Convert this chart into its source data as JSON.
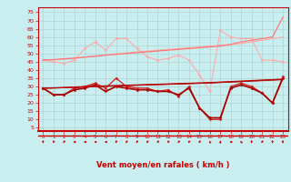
{
  "title": "",
  "xlabel": "Vent moyen/en rafales ( km/h )",
  "background_color": "#c8eef0",
  "grid_color": "#aacccc",
  "x_ticks": [
    0,
    1,
    2,
    3,
    4,
    5,
    6,
    7,
    8,
    9,
    10,
    11,
    12,
    13,
    14,
    15,
    16,
    17,
    18,
    19,
    20,
    21,
    22,
    23
  ],
  "y_ticks": [
    5,
    10,
    15,
    20,
    25,
    30,
    35,
    40,
    45,
    50,
    55,
    60,
    65,
    70,
    75
  ],
  "ylim": [
    3,
    78
  ],
  "xlim": [
    -0.5,
    23.5
  ],
  "lines": [
    {
      "color": "#ffaaaa",
      "lw": 0.8,
      "marker": "D",
      "ms": 1.5,
      "data": [
        46,
        45,
        44,
        46,
        53,
        57,
        52,
        59,
        59,
        53,
        48,
        46,
        47,
        49,
        46,
        37,
        27,
        64,
        60,
        59,
        59,
        46,
        46,
        45
      ]
    },
    {
      "color": "#ffaaaa",
      "lw": 0.8,
      "marker": null,
      "ms": 0,
      "data": [
        46,
        46.2,
        46.5,
        47,
        47.8,
        48.5,
        49,
        49.8,
        50.3,
        51,
        51.5,
        52,
        52.5,
        53,
        53.5,
        54,
        54.5,
        55,
        55.5,
        56,
        57,
        58,
        59,
        60
      ]
    },
    {
      "color": "#ff7777",
      "lw": 0.9,
      "marker": null,
      "ms": 0,
      "data": [
        46,
        46.3,
        46.8,
        47.2,
        47.8,
        48.3,
        49,
        49.5,
        50,
        50.5,
        51,
        51.5,
        52,
        52.5,
        53,
        53.5,
        54,
        54.5,
        55.5,
        57,
        58,
        59,
        60,
        72
      ]
    },
    {
      "color": "#cc2222",
      "lw": 0.9,
      "marker": "D",
      "ms": 1.5,
      "data": [
        29,
        25,
        25,
        29,
        30,
        32,
        29,
        35,
        30,
        29,
        29,
        27,
        28,
        24,
        30,
        17,
        10,
        10,
        30,
        32,
        30,
        26,
        20,
        36
      ]
    },
    {
      "color": "#aa0000",
      "lw": 1.2,
      "marker": "D",
      "ms": 1.5,
      "data": [
        29,
        25,
        25,
        28,
        29,
        31,
        27,
        30,
        29,
        28,
        28,
        27,
        27,
        25,
        29,
        17,
        11,
        11,
        29,
        31,
        29,
        26,
        20,
        35
      ]
    },
    {
      "color": "#cc1111",
      "lw": 0.8,
      "marker": null,
      "ms": 0,
      "data": [
        29,
        29.2,
        29.4,
        29.7,
        30,
        30.2,
        30.4,
        30.6,
        30.8,
        31,
        31.2,
        31.4,
        31.6,
        31.8,
        32,
        32.2,
        32.4,
        32.7,
        33,
        33.3,
        33.6,
        33.9,
        34.2,
        34.5
      ]
    },
    {
      "color": "#aa0000",
      "lw": 0.8,
      "marker": null,
      "ms": 0,
      "data": [
        29,
        29.1,
        29.3,
        29.5,
        29.8,
        30,
        30.2,
        30.4,
        30.6,
        30.8,
        31,
        31.2,
        31.4,
        31.6,
        31.8,
        32,
        32.2,
        32.5,
        32.8,
        33.1,
        33.4,
        33.7,
        34,
        34.3
      ]
    },
    {
      "color": "#bb1111",
      "lw": 0.7,
      "marker": null,
      "ms": 0,
      "data": [
        29,
        29.05,
        29.2,
        29.4,
        29.7,
        29.9,
        30.1,
        30.3,
        30.5,
        30.7,
        30.9,
        31.1,
        31.3,
        31.5,
        31.7,
        31.9,
        32.1,
        32.4,
        32.6,
        32.9,
        33.2,
        33.5,
        33.8,
        34.1
      ]
    }
  ],
  "wind_angles": [
    180,
    225,
    225,
    270,
    270,
    270,
    270,
    225,
    225,
    225,
    225,
    225,
    225,
    225,
    225,
    225,
    315,
    0,
    270,
    315,
    180,
    225,
    180,
    180
  ],
  "axis_color": "#cc0000",
  "tick_color": "#cc0000",
  "label_color": "#cc0000"
}
